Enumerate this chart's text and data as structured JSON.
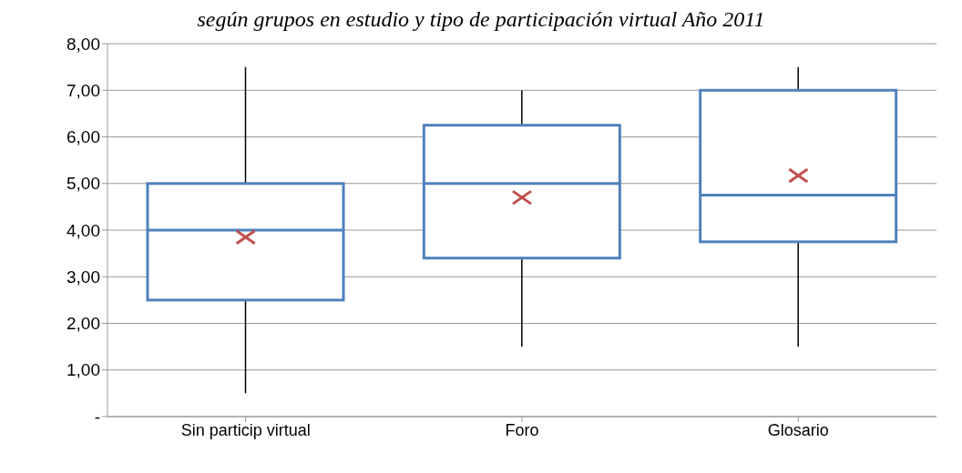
{
  "chart_data": {
    "type": "box",
    "title": "según grupos en estudio y tipo de participación virtual Año 2011",
    "categories": [
      "Sin particip virtual",
      "Foro",
      "Glosario"
    ],
    "series": [
      {
        "color": "#4f81bd",
        "boxes": [
          {
            "low": 0.5,
            "q1": 2.5,
            "median": 4,
            "q3": 5,
            "high": 7.5,
            "mean": 3.85
          },
          {
            "low": 1.5,
            "q1": 3.4,
            "median": 5,
            "q3": 6.25,
            "high": 7,
            "mean": 4.7
          },
          {
            "low": 1.5,
            "q1": 3.75,
            "median": 4.75,
            "q3": 7,
            "high": 7.5,
            "mean": 5.17
          }
        ]
      }
    ],
    "ylim": [
      0,
      8
    ],
    "yticks": [
      {
        "value": 0,
        "label": "-"
      },
      {
        "value": 1,
        "label": "1,00"
      },
      {
        "value": 2,
        "label": "2,00"
      },
      {
        "value": 3,
        "label": "3,00"
      },
      {
        "value": 4,
        "label": "4,00"
      },
      {
        "value": 5,
        "label": "5,00"
      },
      {
        "value": 6,
        "label": "6,00"
      },
      {
        "value": 7,
        "label": "7,00"
      },
      {
        "value": 8,
        "label": "8,00"
      }
    ],
    "grid": "y",
    "marker": "cross"
  }
}
